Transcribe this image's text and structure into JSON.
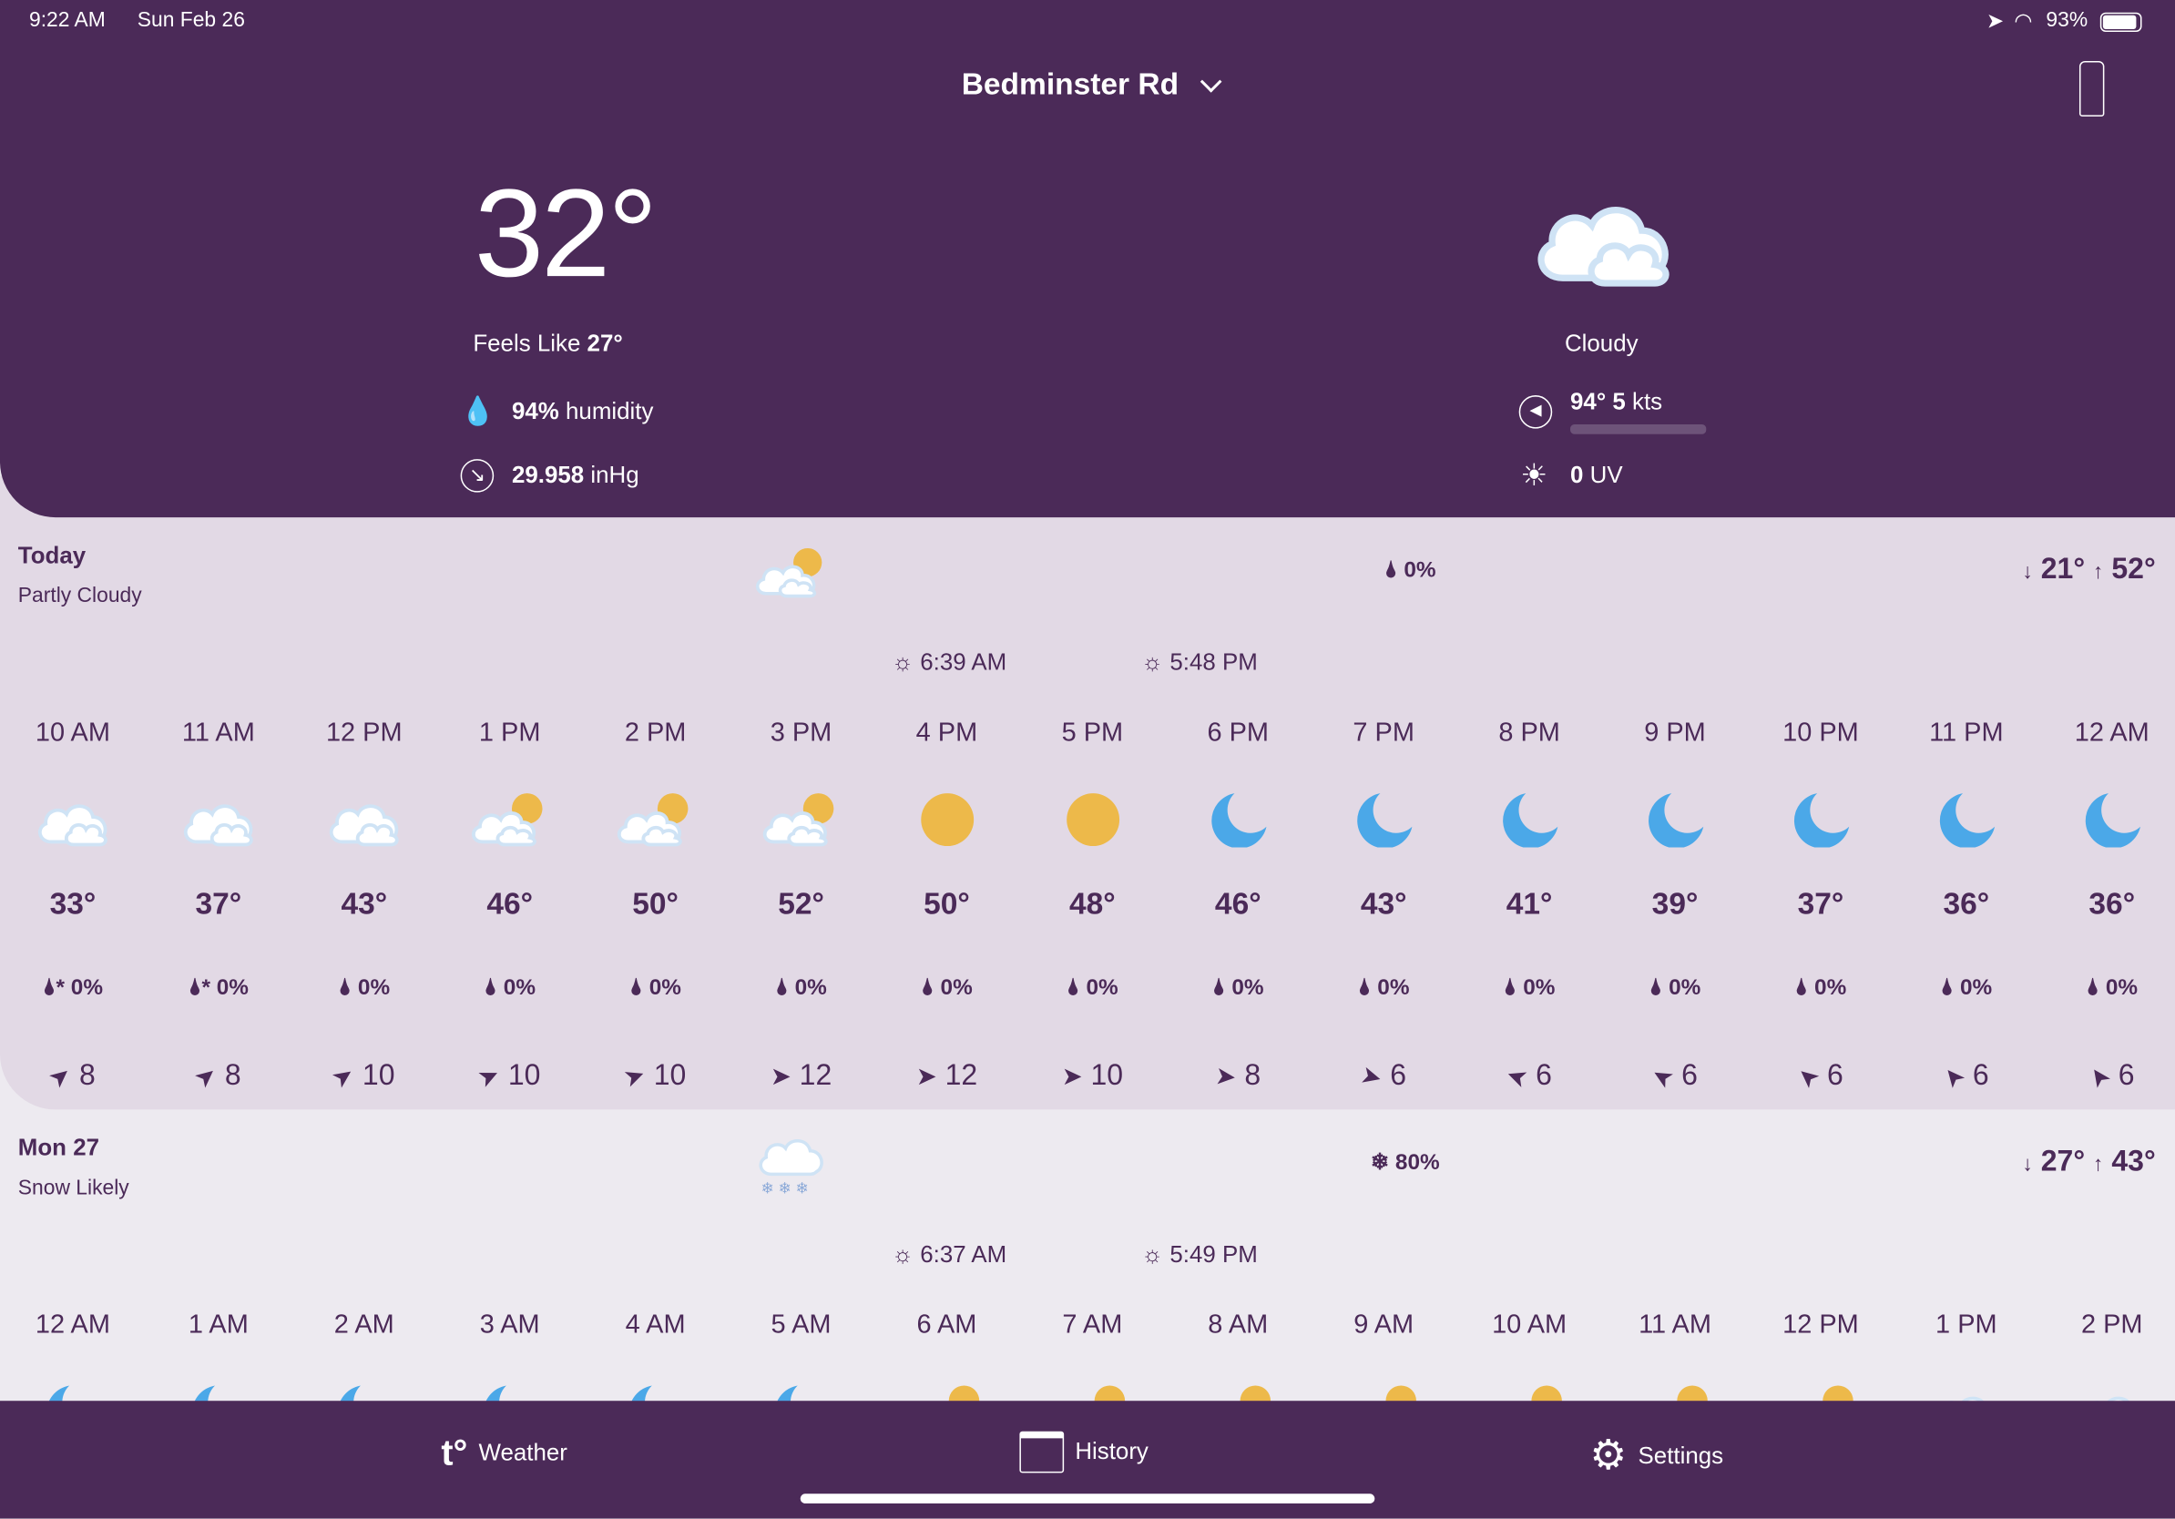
{
  "status_bar": {
    "time": "9:22 AM",
    "date": "Sun Feb 26",
    "battery": "93%"
  },
  "header": {
    "location": "Bedminster Rd",
    "temperature": "32°",
    "feels_like_label": "Feels Like",
    "feels_like": "27°",
    "humidity": "94%",
    "humidity_label": "humidity",
    "pressure": "29.958",
    "pressure_unit": "inHg",
    "condition": "Cloudy",
    "wind": "94° 5",
    "wind_unit": "kts",
    "uv": "0",
    "uv_label": "UV"
  },
  "colors": {
    "purple": "#4B2A58",
    "sun": "#EDB94A",
    "moon": "#4BA8E8",
    "today_bg": "#E2D9E5"
  },
  "today": {
    "name": "Today",
    "condition": "Partly Cloudy",
    "icon": "partly-cloudy",
    "precip": "0%",
    "low": "21°",
    "high": "52°",
    "sunrise": "6:39 AM",
    "sunset": "5:48 PM",
    "hours": [
      {
        "time": "10 AM",
        "icon": "cloudy",
        "temp": "33°",
        "precip": "0%",
        "precip_type": "mixed",
        "wind": "8",
        "wind_dir_deg": -40
      },
      {
        "time": "11 AM",
        "icon": "cloudy",
        "temp": "37°",
        "precip": "0%",
        "precip_type": "mixed",
        "wind": "8",
        "wind_dir_deg": -40
      },
      {
        "time": "12 PM",
        "icon": "cloudy",
        "temp": "43°",
        "precip": "0%",
        "precip_type": "rain",
        "wind": "10",
        "wind_dir_deg": -35
      },
      {
        "time": "1 PM",
        "icon": "partly-cloudy",
        "temp": "46°",
        "precip": "0%",
        "precip_type": "rain",
        "wind": "10",
        "wind_dir_deg": -25
      },
      {
        "time": "2 PM",
        "icon": "partly-cloudy",
        "temp": "50°",
        "precip": "0%",
        "precip_type": "rain",
        "wind": "10",
        "wind_dir_deg": -20
      },
      {
        "time": "3 PM",
        "icon": "partly-cloudy",
        "temp": "52°",
        "precip": "0%",
        "precip_type": "rain",
        "wind": "12",
        "wind_dir_deg": 0
      },
      {
        "time": "4 PM",
        "icon": "sunny",
        "temp": "50°",
        "precip": "0%",
        "precip_type": "rain",
        "wind": "12",
        "wind_dir_deg": 0
      },
      {
        "time": "5 PM",
        "icon": "sunny",
        "temp": "48°",
        "precip": "0%",
        "precip_type": "rain",
        "wind": "10",
        "wind_dir_deg": 0
      },
      {
        "time": "6 PM",
        "icon": "moon",
        "temp": "46°",
        "precip": "0%",
        "precip_type": "rain",
        "wind": "8",
        "wind_dir_deg": 5
      },
      {
        "time": "7 PM",
        "icon": "moon",
        "temp": "43°",
        "precip": "0%",
        "precip_type": "rain",
        "wind": "6",
        "wind_dir_deg": 15
      },
      {
        "time": "8 PM",
        "icon": "moon",
        "temp": "41°",
        "precip": "0%",
        "precip_type": "rain",
        "wind": "6",
        "wind_dir_deg": -160
      },
      {
        "time": "9 PM",
        "icon": "moon",
        "temp": "39°",
        "precip": "0%",
        "precip_type": "rain",
        "wind": "6",
        "wind_dir_deg": -150
      },
      {
        "time": "10 PM",
        "icon": "moon",
        "temp": "37°",
        "precip": "0%",
        "precip_type": "rain",
        "wind": "6",
        "wind_dir_deg": -140
      },
      {
        "time": "11 PM",
        "icon": "moon",
        "temp": "36°",
        "precip": "0%",
        "precip_type": "rain",
        "wind": "6",
        "wind_dir_deg": -130
      },
      {
        "time": "12 AM",
        "icon": "moon",
        "temp": "36°",
        "precip": "0%",
        "precip_type": "rain",
        "wind": "6",
        "wind_dir_deg": -125
      }
    ]
  },
  "tomorrow": {
    "name": "Mon 27",
    "condition": "Snow Likely",
    "icon": "snow",
    "precip": "80%",
    "low": "27°",
    "high": "43°",
    "sunrise": "6:37 AM",
    "sunset": "5:49 PM",
    "hours": [
      {
        "time": "12 AM",
        "icon": "moon"
      },
      {
        "time": "1 AM",
        "icon": "moon"
      },
      {
        "time": "2 AM",
        "icon": "moon"
      },
      {
        "time": "3 AM",
        "icon": "moon"
      },
      {
        "time": "4 AM",
        "icon": "moon"
      },
      {
        "time": "5 AM",
        "icon": "moon"
      },
      {
        "time": "6 AM",
        "icon": "partly-cloudy"
      },
      {
        "time": "7 AM",
        "icon": "partly-cloudy"
      },
      {
        "time": "8 AM",
        "icon": "partly-cloudy"
      },
      {
        "time": "9 AM",
        "icon": "partly-cloudy"
      },
      {
        "time": "10 AM",
        "icon": "partly-cloudy"
      },
      {
        "time": "11 AM",
        "icon": "partly-cloudy"
      },
      {
        "time": "12 PM",
        "icon": "partly-cloudy"
      },
      {
        "time": "1 PM",
        "icon": "cloudy"
      },
      {
        "time": "2 PM",
        "icon": "cloudy"
      }
    ]
  },
  "tabs": [
    {
      "label": "Weather",
      "icon": "tempest-logo"
    },
    {
      "label": "History",
      "icon": "calendar-icon"
    },
    {
      "label": "Settings",
      "icon": "gear-icon"
    }
  ]
}
